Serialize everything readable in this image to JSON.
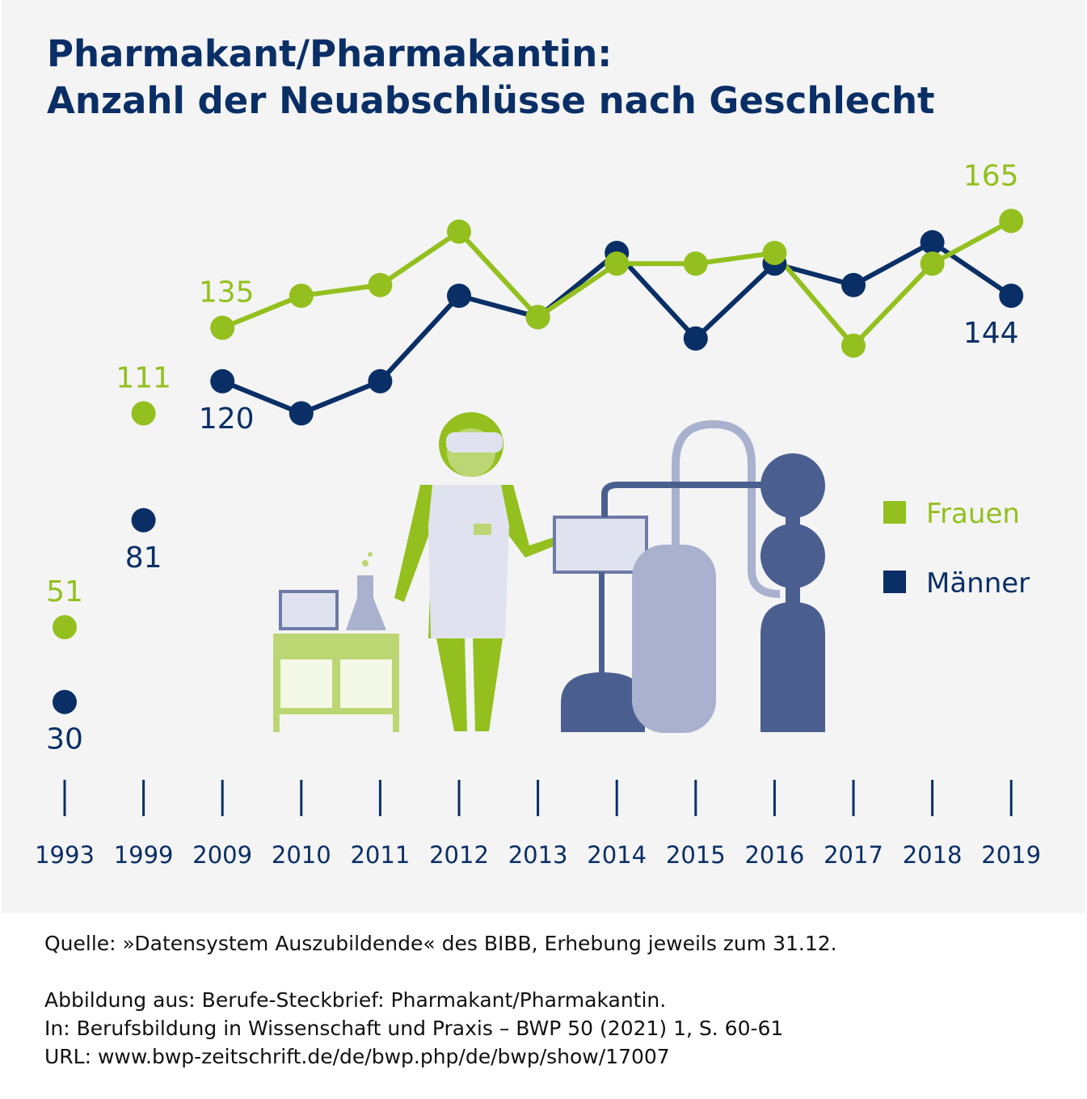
{
  "title_line1": "Pharmakant/Pharmakantin:",
  "title_line2": "Anzahl der Neuabschlüsse nach Geschlecht",
  "colors": {
    "frauen": "#93c01f",
    "maenner": "#0a2f66",
    "background": "#f4f4f4"
  },
  "chart_data": {
    "type": "line",
    "title": "Pharmakant/Pharmakantin: Anzahl der Neuabschlüsse nach Geschlecht",
    "categories": [
      "1993",
      "1999",
      "2009",
      "2010",
      "2011",
      "2012",
      "2013",
      "2014",
      "2015",
      "2016",
      "2017",
      "2018",
      "2019"
    ],
    "series": [
      {
        "name": "Frauen",
        "values": [
          51,
          111,
          135,
          144,
          147,
          162,
          138,
          153,
          153,
          156,
          130,
          153,
          165
        ]
      },
      {
        "name": "Männer",
        "values": [
          30,
          81,
          120,
          111,
          120,
          144,
          138,
          156,
          132,
          153,
          147,
          159,
          144
        ]
      }
    ],
    "labeled_points": {
      "Frauen": {
        "1993": "51",
        "1999": "111",
        "2009": "135",
        "2019": "165"
      },
      "Männer": {
        "1993": "30",
        "1999": "81",
        "2009": "120",
        "2019": "144"
      }
    },
    "legend": [
      "Frauen",
      "Männer"
    ],
    "legend_position": "right",
    "grid": false,
    "note": "lines connect only 2009–2019"
  },
  "footer": {
    "source": "Quelle: »Datensystem Auszubildende« des BIBB, Erhebung jeweils zum 31.12.",
    "line1": "Abbildung aus: Berufe-Steckbrief: Pharmakant/Pharmakantin.",
    "line2": "In: Berufsbildung in Wissenschaft und Praxis – BWP 50 (2021) 1, S. 60-61",
    "line3": "URL: www.bwp-zeitschrift.de/de/bwp.php/de/bwp/show/17007"
  }
}
